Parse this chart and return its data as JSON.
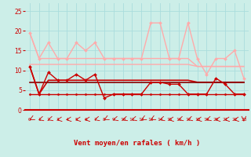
{
  "x": [
    0,
    1,
    2,
    3,
    4,
    5,
    6,
    7,
    8,
    9,
    10,
    11,
    12,
    13,
    14,
    15,
    16,
    17,
    18,
    19,
    20,
    21,
    22,
    23
  ],
  "bg_color": "#cceee8",
  "xlabel": "Vent moyen/en rafales ( km/h )",
  "xlabel_color": "#cc0000",
  "grid_color": "#aadddd",
  "tick_color": "#cc0000",
  "spine_color": "#cc0000",
  "ylim": [
    0,
    27
  ],
  "yticks": [
    0,
    5,
    10,
    15,
    20,
    25
  ],
  "series": [
    {
      "values": [
        19.5,
        13,
        13,
        13,
        13,
        13,
        13,
        13,
        13,
        13,
        13,
        13,
        13,
        13,
        13,
        13,
        13,
        13,
        11,
        11,
        11,
        11,
        11,
        11
      ],
      "color": "#ffaaaa",
      "linewidth": 1.0,
      "marker": null,
      "zorder": 2
    },
    {
      "values": [
        11.5,
        11.5,
        11.5,
        11.5,
        11.5,
        11.5,
        11.5,
        11.5,
        11.5,
        11.5,
        11.5,
        11.5,
        11.5,
        11.5,
        11.5,
        11.5,
        11.5,
        11.5,
        11,
        11,
        11,
        11,
        11,
        11
      ],
      "color": "#ffaaaa",
      "linewidth": 1.0,
      "marker": null,
      "zorder": 2
    },
    {
      "values": [
        19.5,
        13,
        17,
        13,
        13,
        17,
        15,
        17,
        13,
        13,
        13,
        13,
        13,
        22,
        22,
        13,
        13,
        22,
        13,
        9,
        13,
        13,
        15,
        8
      ],
      "color": "#ffaaaa",
      "linewidth": 1.0,
      "marker": "D",
      "markersize": 2.0,
      "zorder": 3
    },
    {
      "values": [
        11,
        4,
        7.5,
        7.5,
        7.5,
        7.5,
        7.5,
        7.5,
        7.5,
        7.5,
        7.5,
        7.5,
        7.5,
        7.5,
        7.5,
        7.5,
        7.5,
        7.5,
        7,
        7,
        7,
        7,
        7,
        7
      ],
      "color": "#cc0000",
      "linewidth": 1.2,
      "marker": null,
      "zorder": 4
    },
    {
      "values": [
        7,
        7,
        7,
        7,
        7,
        7,
        7,
        7,
        7,
        7,
        7,
        7,
        7,
        7,
        7,
        7,
        7,
        7,
        7,
        7,
        7,
        7,
        7,
        7
      ],
      "color": "#880000",
      "linewidth": 1.2,
      "marker": null,
      "zorder": 4
    },
    {
      "values": [
        11,
        4,
        9.5,
        7.5,
        7.5,
        9,
        7.5,
        9,
        3,
        4,
        4,
        4,
        4,
        7,
        7,
        6.5,
        6.5,
        4,
        4,
        4,
        8,
        6.5,
        4,
        4
      ],
      "color": "#cc0000",
      "linewidth": 1.0,
      "marker": "D",
      "markersize": 2.0,
      "zorder": 5
    },
    {
      "values": [
        4,
        4,
        4,
        4,
        4,
        4,
        4,
        4,
        4,
        4,
        4,
        4,
        4,
        4,
        4,
        4,
        4,
        4,
        4,
        4,
        4,
        4,
        4,
        4
      ],
      "color": "#cc0000",
      "linewidth": 1.0,
      "marker": "D",
      "markersize": 1.5,
      "zorder": 5
    }
  ],
  "arrow_angles": [
    225,
    210,
    210,
    195,
    195,
    195,
    195,
    210,
    225,
    210,
    210,
    210,
    225,
    225,
    210,
    195,
    210,
    210,
    195,
    210,
    195,
    195,
    195,
    270
  ]
}
